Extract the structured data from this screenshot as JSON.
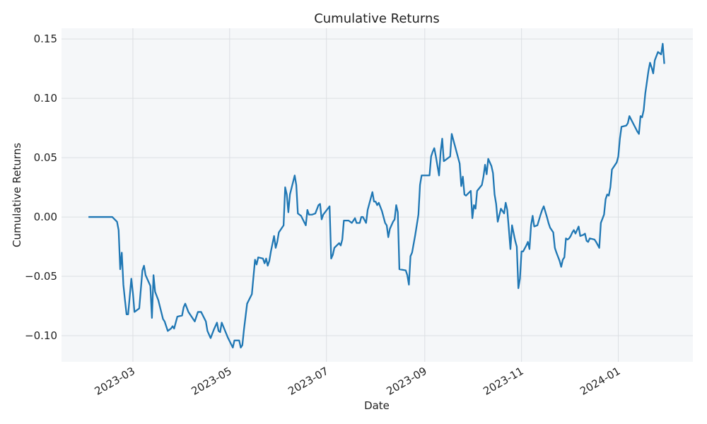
{
  "chart_data": {
    "type": "line",
    "title": "Cumulative Returns",
    "x_label": "Date",
    "y_label": "Cumulative Returns",
    "x": [
      "2023-02-01",
      "2023-02-16",
      "2023-02-19",
      "2023-02-20",
      "2023-02-21",
      "2023-02-22",
      "2023-02-23",
      "2023-02-24",
      "2023-02-25",
      "2023-02-26",
      "2023-02-28",
      "2023-03-01",
      "2023-03-02",
      "2023-03-05",
      "2023-03-07",
      "2023-03-08",
      "2023-03-09",
      "2023-03-12",
      "2023-03-13",
      "2023-03-14",
      "2023-03-15",
      "2023-03-17",
      "2023-03-20",
      "2023-03-21",
      "2023-03-23",
      "2023-03-25",
      "2023-03-26",
      "2023-03-27",
      "2023-03-29",
      "2023-04-01",
      "2023-04-02",
      "2023-04-03",
      "2023-04-05",
      "2023-04-09",
      "2023-04-11",
      "2023-04-13",
      "2023-04-16",
      "2023-04-17",
      "2023-04-19",
      "2023-04-21",
      "2023-04-23",
      "2023-04-24",
      "2023-04-25",
      "2023-04-26",
      "2023-04-30",
      "2023-05-03",
      "2023-05-04",
      "2023-05-07",
      "2023-05-08",
      "2023-05-09",
      "2023-05-10",
      "2023-05-12",
      "2023-05-15",
      "2023-05-17",
      "2023-05-18",
      "2023-05-19",
      "2023-05-22",
      "2023-05-23",
      "2023-05-24",
      "2023-05-25",
      "2023-05-26",
      "2023-05-27",
      "2023-05-29",
      "2023-05-30",
      "2023-05-31",
      "2023-06-01",
      "2023-06-04",
      "2023-06-05",
      "2023-06-06",
      "2023-06-07",
      "2023-06-08",
      "2023-06-11",
      "2023-06-12",
      "2023-06-13",
      "2023-06-15",
      "2023-06-18",
      "2023-06-19",
      "2023-06-20",
      "2023-06-22",
      "2023-06-24",
      "2023-06-26",
      "2023-06-27",
      "2023-06-28",
      "2023-06-29",
      "2023-07-03",
      "2023-07-04",
      "2023-07-05",
      "2023-07-06",
      "2023-07-09",
      "2023-07-10",
      "2023-07-11",
      "2023-07-12",
      "2023-07-15",
      "2023-07-17",
      "2023-07-19",
      "2023-07-20",
      "2023-07-22",
      "2023-07-23",
      "2023-07-24",
      "2023-07-26",
      "2023-07-27",
      "2023-07-30",
      "2023-07-31",
      "2023-08-01",
      "2023-08-02",
      "2023-08-03",
      "2023-08-05",
      "2023-08-07",
      "2023-08-08",
      "2023-08-09",
      "2023-08-10",
      "2023-08-12",
      "2023-08-13",
      "2023-08-14",
      "2023-08-15",
      "2023-08-16",
      "2023-08-20",
      "2023-08-21",
      "2023-08-22",
      "2023-08-23",
      "2023-08-24",
      "2023-08-26",
      "2023-08-28",
      "2023-08-29",
      "2023-08-30",
      "2023-09-02",
      "2023-09-04",
      "2023-09-05",
      "2023-09-06",
      "2023-09-07",
      "2023-09-08",
      "2023-09-10",
      "2023-09-11",
      "2023-09-12",
      "2023-09-13",
      "2023-09-15",
      "2023-09-17",
      "2023-09-18",
      "2023-09-19",
      "2023-09-20",
      "2023-09-23",
      "2023-09-24",
      "2023-09-25",
      "2023-09-26",
      "2023-09-27",
      "2023-09-30",
      "2023-10-01",
      "2023-10-02",
      "2023-10-03",
      "2023-10-04",
      "2023-10-07",
      "2023-10-08",
      "2023-10-09",
      "2023-10-10",
      "2023-10-11",
      "2023-10-13",
      "2023-10-14",
      "2023-10-15",
      "2023-10-16",
      "2023-10-17",
      "2023-10-19",
      "2023-10-21",
      "2023-10-22",
      "2023-10-23",
      "2023-10-24",
      "2023-10-25",
      "2023-10-26",
      "2023-10-28",
      "2023-10-29",
      "2023-10-30",
      "2023-10-31",
      "2023-11-01",
      "2023-11-02",
      "2023-11-04",
      "2023-11-05",
      "2023-11-06",
      "2023-11-07",
      "2023-11-08",
      "2023-11-09",
      "2023-11-11",
      "2023-11-13",
      "2023-11-14",
      "2023-11-15",
      "2023-11-17",
      "2023-11-18",
      "2023-11-19",
      "2023-11-21",
      "2023-11-22",
      "2023-11-23",
      "2023-11-25",
      "2023-11-26",
      "2023-11-27",
      "2023-11-28",
      "2023-11-29",
      "2023-11-30",
      "2023-12-01",
      "2023-12-02",
      "2023-12-03",
      "2023-12-04",
      "2023-12-05",
      "2023-12-06",
      "2023-12-07",
      "2023-12-08",
      "2023-12-10",
      "2023-12-11",
      "2023-12-12",
      "2023-12-13",
      "2023-12-14",
      "2023-12-17",
      "2023-12-18",
      "2023-12-20",
      "2023-12-21",
      "2023-12-23",
      "2023-12-24",
      "2023-12-25",
      "2023-12-26",
      "2023-12-27",
      "2023-12-28",
      "2023-12-31",
      "2024-01-01",
      "2024-01-02",
      "2024-01-03",
      "2024-01-06",
      "2024-01-07",
      "2024-01-08",
      "2024-01-13",
      "2024-01-14",
      "2024-01-15",
      "2024-01-16",
      "2024-01-17",
      "2024-01-18",
      "2024-01-20",
      "2024-01-21",
      "2024-01-22",
      "2024-01-23",
      "2024-01-24",
      "2024-01-26",
      "2024-01-28",
      "2024-01-29",
      "2024-01-30"
    ],
    "values": [
      0,
      0,
      -0.004,
      -0.011,
      -0.044,
      -0.03,
      -0.057,
      -0.07,
      -0.082,
      -0.082,
      -0.052,
      -0.064,
      -0.08,
      -0.077,
      -0.045,
      -0.041,
      -0.049,
      -0.058,
      -0.085,
      -0.049,
      -0.063,
      -0.07,
      -0.086,
      -0.088,
      -0.096,
      -0.094,
      -0.092,
      -0.094,
      -0.084,
      -0.083,
      -0.076,
      -0.073,
      -0.08,
      -0.088,
      -0.08,
      -0.08,
      -0.088,
      -0.096,
      -0.102,
      -0.095,
      -0.089,
      -0.096,
      -0.097,
      -0.089,
      -0.102,
      -0.11,
      -0.104,
      -0.104,
      -0.11,
      -0.108,
      -0.095,
      -0.073,
      -0.065,
      -0.036,
      -0.04,
      -0.034,
      -0.035,
      -0.039,
      -0.035,
      -0.041,
      -0.037,
      -0.029,
      -0.016,
      -0.026,
      -0.021,
      -0.013,
      -0.007,
      0.025,
      0.019,
      0.004,
      0.019,
      0.035,
      0.027,
      0.003,
      0.001,
      -0.007,
      0.006,
      0.002,
      0.002,
      0.003,
      0.01,
      0.011,
      -0.002,
      0.002,
      0.009,
      -0.035,
      -0.032,
      -0.026,
      -0.022,
      -0.024,
      -0.019,
      -0.003,
      -0.003,
      -0.005,
      -0.001,
      -0.005,
      -0.005,
      0.0,
      0.0,
      -0.005,
      0.006,
      0.021,
      0.013,
      0.013,
      0.01,
      0.012,
      0.005,
      -0.005,
      -0.007,
      -0.017,
      -0.01,
      -0.004,
      -0.002,
      0.01,
      0.004,
      -0.044,
      -0.045,
      -0.049,
      -0.057,
      -0.033,
      -0.03,
      -0.015,
      0.002,
      0.027,
      0.035,
      0.035,
      0.035,
      0.051,
      0.055,
      0.058,
      0.051,
      0.035,
      0.055,
      0.066,
      0.047,
      0.049,
      0.051,
      0.07,
      0.065,
      0.06,
      0.045,
      0.026,
      0.034,
      0.019,
      0.018,
      0.022,
      -0.001,
      0.01,
      0.007,
      0.022,
      0.027,
      0.034,
      0.044,
      0.036,
      0.049,
      0.043,
      0.037,
      0.019,
      0.011,
      -0.004,
      0.007,
      0.003,
      0.012,
      0.006,
      -0.01,
      -0.027,
      -0.007,
      -0.02,
      -0.025,
      -0.06,
      -0.052,
      -0.029,
      -0.029,
      -0.024,
      -0.021,
      -0.027,
      -0.007,
      0.001,
      -0.008,
      -0.007,
      0.002,
      0.006,
      0.009,
      0.0,
      -0.005,
      -0.009,
      -0.013,
      -0.026,
      -0.03,
      -0.037,
      -0.042,
      -0.036,
      -0.034,
      -0.018,
      -0.019,
      -0.018,
      -0.016,
      -0.013,
      -0.011,
      -0.014,
      -0.011,
      -0.008,
      -0.016,
      -0.015,
      -0.014,
      -0.02,
      -0.021,
      -0.018,
      -0.019,
      -0.021,
      -0.026,
      -0.005,
      0.002,
      0.015,
      0.019,
      0.018,
      0.025,
      0.04,
      0.046,
      0.051,
      0.066,
      0.076,
      0.077,
      0.079,
      0.085,
      0.072,
      0.07,
      0.085,
      0.084,
      0.09,
      0.104,
      0.123,
      0.13,
      0.126,
      0.121,
      0.132,
      0.139,
      0.137,
      0.146,
      0.129
    ],
    "color": "#1f77b4",
    "grid": true,
    "xlim": [
      "2023-01-15",
      "2024-02-17"
    ],
    "xticks": [
      {
        "value": "2023-03-01",
        "label": "2023-03"
      },
      {
        "value": "2023-05-01",
        "label": "2023-05"
      },
      {
        "value": "2023-07-01",
        "label": "2023-07"
      },
      {
        "value": "2023-09-01",
        "label": "2023-09"
      },
      {
        "value": "2023-11-01",
        "label": "2023-11"
      },
      {
        "value": "2024-01-01",
        "label": "2024-01"
      }
    ],
    "ylim": [
      -0.122,
      0.159
    ],
    "yticks": [
      {
        "value": -0.1,
        "label": "−0.10"
      },
      {
        "value": -0.05,
        "label": "−0.05"
      },
      {
        "value": 0,
        "label": "0.00"
      },
      0.05,
      {
        "value": 0.1,
        "label": "0.10"
      },
      0.15
    ]
  }
}
